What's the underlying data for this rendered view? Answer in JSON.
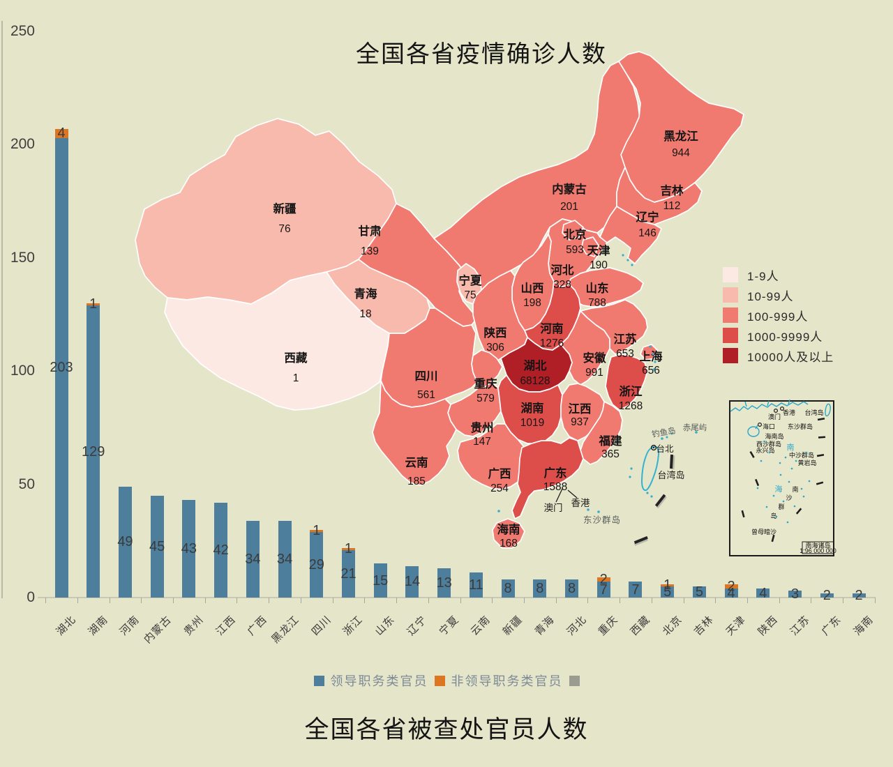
{
  "titles": {
    "map_title": "全国各省疫情确诊人数",
    "bar_title": "全国各省被查处官员人数"
  },
  "map_legend": {
    "items": [
      {
        "label": "1-9人",
        "color": "#fcE9e3"
      },
      {
        "label": "10-99人",
        "color": "#f8baac"
      },
      {
        "label": "100-999人",
        "color": "#f17a70"
      },
      {
        "label": "1000-9999人",
        "color": "#dd4e4b"
      },
      {
        "label": "10000人及以上",
        "color": "#b01e26"
      }
    ]
  },
  "map": {
    "provinces": [
      {
        "id": "xinjiang",
        "name": "新疆",
        "value": "76",
        "category": 1
      },
      {
        "id": "xizang",
        "name": "西藏",
        "value": "1",
        "category": 0
      },
      {
        "id": "gansu",
        "name": "甘肃",
        "value": "139",
        "category": 2
      },
      {
        "id": "qinghai",
        "name": "青海",
        "value": "18",
        "category": 1
      },
      {
        "id": "neimenggu",
        "name": "内蒙古",
        "value": "201",
        "category": 2
      },
      {
        "id": "heilongjiang",
        "name": "黑龙江",
        "value": "944",
        "category": 2
      },
      {
        "id": "jilin",
        "name": "吉林",
        "value": "112",
        "category": 2
      },
      {
        "id": "liaoning",
        "name": "辽宁",
        "value": "146",
        "category": 2
      },
      {
        "id": "hebei",
        "name": "河北",
        "value": "328",
        "category": 2
      },
      {
        "id": "beijing",
        "name": "北京",
        "value": "593",
        "category": 2
      },
      {
        "id": "tianjin",
        "name": "天津",
        "value": "190",
        "category": 2
      },
      {
        "id": "shanxi",
        "name": "山西",
        "value": "198",
        "category": 2
      },
      {
        "id": "shandong",
        "name": "山东",
        "value": "788",
        "category": 2
      },
      {
        "id": "henan",
        "name": "河南",
        "value": "1276",
        "category": 3
      },
      {
        "id": "shaanxi",
        "name": "陕西",
        "value": "306",
        "category": 2
      },
      {
        "id": "ningxia",
        "name": "宁夏",
        "value": "75",
        "category": 1
      },
      {
        "id": "jiangsu",
        "name": "江苏",
        "value": "653",
        "category": 2
      },
      {
        "id": "shanghai",
        "name": "上海",
        "value": "656",
        "category": 2
      },
      {
        "id": "anhui",
        "name": "安徽",
        "value": "991",
        "category": 2
      },
      {
        "id": "hubei",
        "name": "湖北",
        "value": "68128",
        "category": 4
      },
      {
        "id": "sichuan",
        "name": "四川",
        "value": "561",
        "category": 2
      },
      {
        "id": "chongqing",
        "name": "重庆",
        "value": "579",
        "category": 2
      },
      {
        "id": "guizhou",
        "name": "贵州",
        "value": "147",
        "category": 2
      },
      {
        "id": "yunnan",
        "name": "云南",
        "value": "185",
        "category": 2
      },
      {
        "id": "hunan",
        "name": "湖南",
        "value": "1019",
        "category": 3
      },
      {
        "id": "jiangxi",
        "name": "江西",
        "value": "937",
        "category": 2
      },
      {
        "id": "zhejiang",
        "name": "浙江",
        "value": "1268",
        "category": 3
      },
      {
        "id": "fujian",
        "name": "福建",
        "value": "365",
        "category": 2
      },
      {
        "id": "guangxi",
        "name": "广西",
        "value": "254",
        "category": 2
      },
      {
        "id": "guangdong",
        "name": "广东",
        "value": "1588",
        "category": 3
      },
      {
        "id": "hainan",
        "name": "海南",
        "value": "168",
        "category": 2
      }
    ],
    "annotations": {
      "macau": "澳门",
      "hongkong": "香港",
      "dongsha": "东沙群岛",
      "diaoyu": "钓鱼岛",
      "chiwei": "赤尾屿",
      "taipei": "台北",
      "taiwan_island": "台湾岛"
    }
  },
  "inset": {
    "macau": "澳门",
    "hongkong": "香港",
    "taiwan": "台湾岛",
    "haikou": "海口",
    "dongsha": "东沙群岛",
    "hainandao": "海南岛",
    "xisha": "西沙群岛",
    "yongxing": "永兴岛",
    "zhongsha": "中沙群岛",
    "huangyan": "黄岩岛",
    "zengmu": "曾母暗沙",
    "sea_n": "南",
    "sea_h": "海",
    "ns_n": "南",
    "ns_s": "沙",
    "ns_q": "群",
    "ns_d": "岛",
    "box_title": "南海诸岛",
    "box_scale": "1:96 000 000"
  },
  "chart_data": {
    "type": "bar",
    "stacked": true,
    "title": "全国各省被查处官员人数",
    "categories": [
      "湖北",
      "湖南",
      "河南",
      "内蒙古",
      "贵州",
      "江西",
      "广西",
      "黑龙江",
      "四川",
      "浙江",
      "山东",
      "辽宁",
      "宁夏",
      "云南",
      "新疆",
      "青海",
      "河北",
      "重庆",
      "西藏",
      "北京",
      "吉林",
      "天津",
      "陕西",
      "江苏",
      "广东",
      "海南"
    ],
    "series": [
      {
        "name": "领导职务类官员",
        "color": "#4d7e9b",
        "values": [
          203,
          129,
          49,
          45,
          43,
          42,
          34,
          34,
          29,
          21,
          15,
          14,
          13,
          11,
          8,
          8,
          8,
          7,
          7,
          5,
          5,
          4,
          4,
          3,
          2,
          2
        ]
      },
      {
        "name": "非领导职务类官员",
        "color": "#dd7623",
        "values": [
          4,
          1,
          0,
          0,
          0,
          0,
          0,
          0,
          1,
          1,
          0,
          0,
          0,
          0,
          0,
          0,
          0,
          2,
          0,
          1,
          0,
          2,
          0,
          0,
          0,
          0
        ]
      }
    ],
    "ylabel": "",
    "ylim": [
      0,
      250
    ],
    "yticks": [
      0,
      50,
      100,
      150,
      200,
      250
    ],
    "grid": false,
    "legend_position": "bottom"
  },
  "series_legend": {
    "items": [
      {
        "label": "领导职务类官员",
        "color": "#4d7e9b"
      },
      {
        "label": "非领导职务类官员",
        "color": "#dd7623"
      },
      {
        "label": "",
        "color": "#9b9b91"
      }
    ]
  }
}
